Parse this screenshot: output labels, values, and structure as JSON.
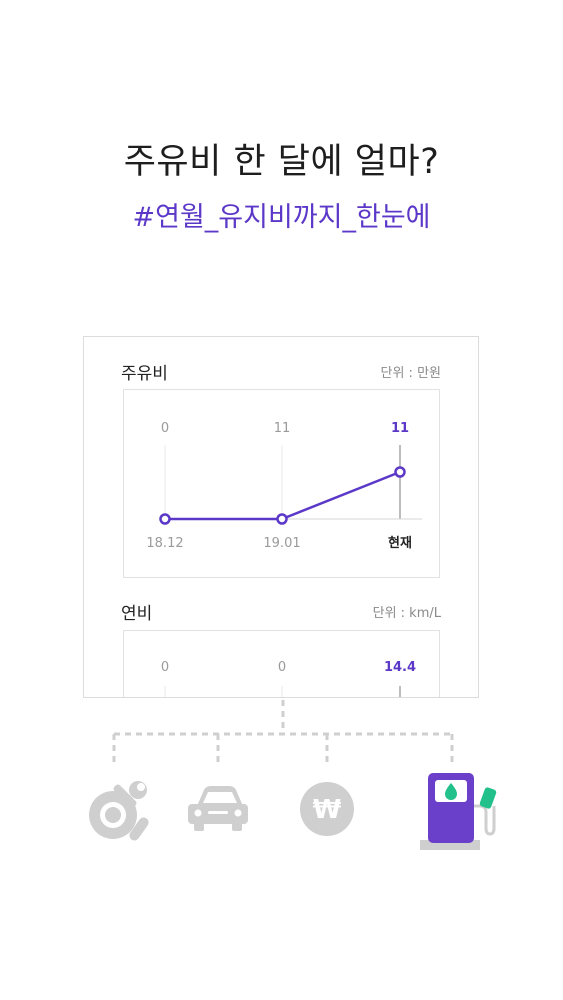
{
  "header": {
    "title": "주유비 한 달에 얼마?",
    "subtitle": "#연월_유지비까지_한눈에"
  },
  "colors": {
    "accent": "#5b38c8",
    "line": "#5b38c8",
    "icon_gray": "#cfcfcf",
    "pump": "#6a3fc9",
    "nozzle": "#22c08a"
  },
  "fuel_cost": {
    "title": "주유비",
    "unit": "단위 : 만원",
    "chart_data": {
      "type": "line",
      "categories": [
        "18.12",
        "19.01",
        "현재"
      ],
      "values": [
        0,
        11,
        11
      ],
      "value_labels": [
        "0",
        "11",
        "11"
      ],
      "highlight_last": true
    }
  },
  "fuel_efficiency": {
    "title": "연비",
    "unit": "단위 : km/L",
    "chart_data": {
      "type": "line",
      "value_labels": [
        "0",
        "0",
        "14.4"
      ],
      "values": [
        0,
        0,
        14.4
      ],
      "highlight_last": true
    }
  },
  "categories_icons": [
    "maintenance-icon",
    "car-icon",
    "won-icon",
    "gas-pump-icon"
  ]
}
